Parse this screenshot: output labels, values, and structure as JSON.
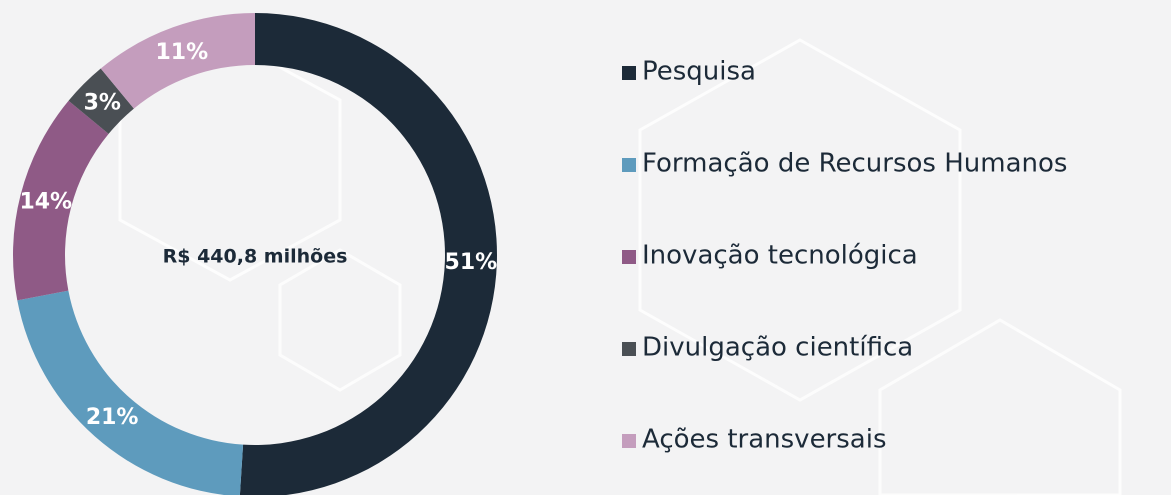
{
  "chart_data": {
    "type": "pie",
    "center_text": "R$ 440,8 milhões",
    "categories": [
      "Pesquisa",
      "Formação de Recursos Humanos",
      "Inovação tecnológica",
      "Divulgação científica",
      "Ações transversais"
    ],
    "values": [
      51,
      21,
      14,
      3,
      11
    ],
    "value_labels": [
      "51%",
      "21%",
      "14%",
      "3%",
      "11%"
    ],
    "colors": [
      "#1c2a38",
      "#5e9bbd",
      "#8f5a86",
      "#4a4f54",
      "#c49dbd"
    ]
  }
}
